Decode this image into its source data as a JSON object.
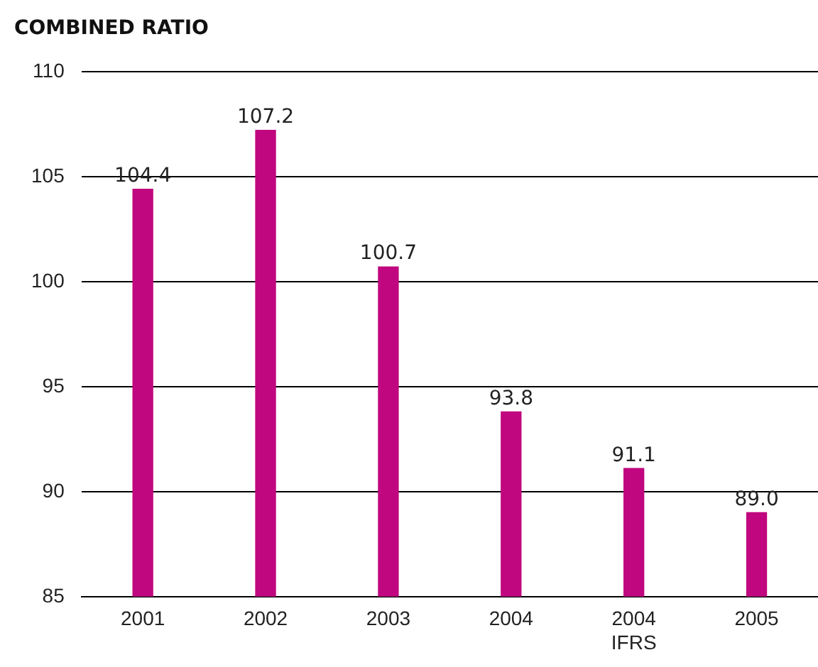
{
  "chart_data": {
    "type": "bar",
    "title": "COMBINED RATIO",
    "categories": [
      "2001",
      "2002",
      "2003",
      "2004",
      "2004\nIFRS",
      "2005"
    ],
    "values": [
      104.4,
      107.2,
      100.7,
      93.8,
      91.1,
      89.0
    ],
    "value_labels": [
      "104.4",
      "107.2",
      "100.7",
      "93.8",
      "91.1",
      "89.0"
    ],
    "color": "#c0077f",
    "ylim": [
      85,
      110
    ],
    "yticks": [
      85,
      90,
      95,
      100,
      105,
      110
    ],
    "grid": "y",
    "legend": false
  }
}
